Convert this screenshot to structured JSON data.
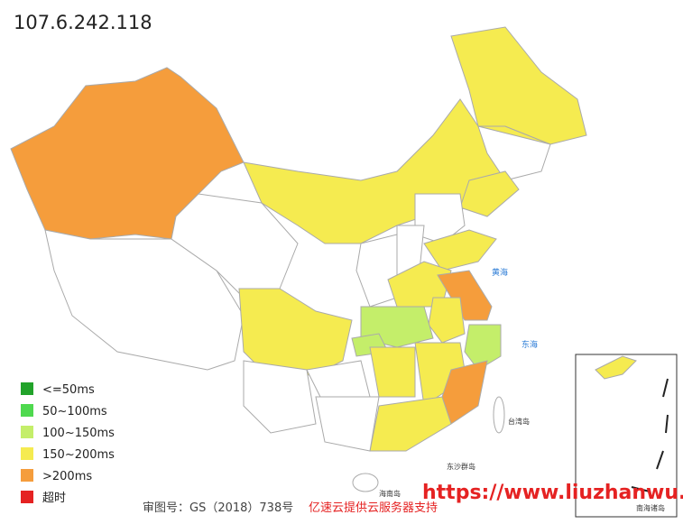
{
  "header": {
    "title": "107.6.242.118"
  },
  "legend": {
    "items": [
      {
        "label": "<=50ms",
        "color": "#22a32a"
      },
      {
        "label": "50~100ms",
        "color": "#4fd94f"
      },
      {
        "label": "100~150ms",
        "color": "#c4ee6a"
      },
      {
        "label": "150~200ms",
        "color": "#f5eb50"
      },
      {
        "label": ">200ms",
        "color": "#f59d3c"
      },
      {
        "label": "超时",
        "color": "#e52222"
      }
    ]
  },
  "map_labels": [
    "黄海",
    "东海",
    "台湾岛",
    "东沙群岛",
    "海南岛",
    "南海诸岛"
  ],
  "footer": {
    "approval": "审图号：GS（2018）738号",
    "sponsor": "亿速云提供云服务器支持"
  },
  "watermark": "https://www.liuzhanwu.cn"
}
